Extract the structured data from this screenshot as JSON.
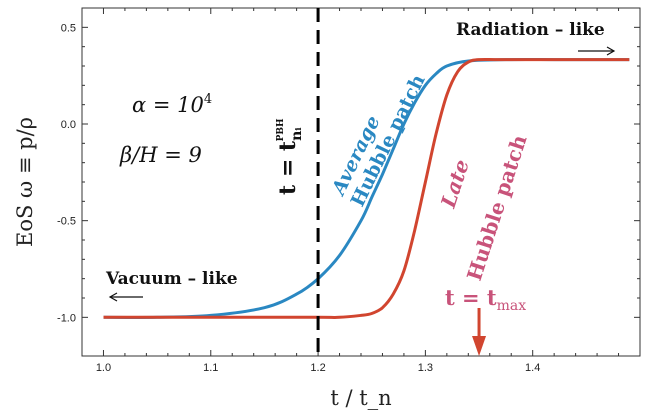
{
  "chart_data": {
    "type": "line",
    "xlabel": "t / t_n",
    "ylabel": "EoS ω ≡ p/ρ",
    "xlim": [
      0.98,
      1.5
    ],
    "ylim": [
      -1.2,
      0.6
    ],
    "x_ticks": [
      "1.0",
      "1.1",
      "1.2",
      "1.3",
      "1.4"
    ],
    "y_ticks": [
      "-1.0",
      "-0.5",
      "0.0",
      "0.5"
    ],
    "series": [
      {
        "name": "Average Hubble patch",
        "color": "#2a88c2",
        "x": [
          1.0,
          1.05,
          1.1,
          1.15,
          1.18,
          1.2,
          1.22,
          1.24,
          1.25,
          1.26,
          1.27,
          1.28,
          1.29,
          1.3,
          1.31,
          1.32,
          1.34,
          1.38,
          1.42,
          1.46,
          1.49
        ],
        "y": [
          -1.0,
          -1.0,
          -0.99,
          -0.95,
          -0.88,
          -0.8,
          -0.68,
          -0.5,
          -0.38,
          -0.26,
          -0.13,
          0.0,
          0.11,
          0.2,
          0.26,
          0.3,
          0.326,
          0.333,
          0.333,
          0.333,
          0.333
        ]
      },
      {
        "name": "Late Hubble patch",
        "color": "#d1452f",
        "x": [
          1.0,
          1.1,
          1.2,
          1.22,
          1.24,
          1.25,
          1.26,
          1.27,
          1.28,
          1.29,
          1.3,
          1.31,
          1.32,
          1.33,
          1.34,
          1.35,
          1.37,
          1.42,
          1.49
        ],
        "y": [
          -1.0,
          -1.0,
          -1.0,
          -1.0,
          -0.99,
          -0.98,
          -0.95,
          -0.88,
          -0.76,
          -0.55,
          -0.3,
          -0.05,
          0.15,
          0.27,
          0.32,
          0.333,
          0.333,
          0.333,
          0.333
        ]
      }
    ],
    "vline": {
      "x": 1.2,
      "label": "t = t",
      "label_sup": "PBH",
      "label_sub": "nᵢ"
    },
    "arrow": {
      "x": 1.35,
      "label": "t = t",
      "label_sub": "max",
      "color": "#d1452f"
    },
    "annotations": {
      "params": [
        "α = 10",
        "4",
        "β/H = 9"
      ],
      "radiation": "Radiation – like",
      "vacuum": "Vacuum – like",
      "average_label": [
        "Average",
        "Hubble patch"
      ],
      "late_label": [
        "Late",
        "Hubble patch"
      ]
    },
    "grid": false,
    "legend": "none"
  }
}
